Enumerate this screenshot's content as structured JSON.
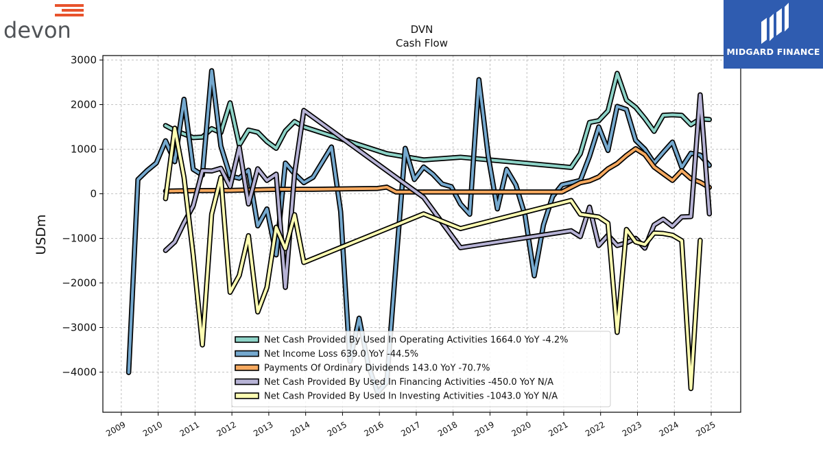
{
  "branding": {
    "left_logo_text": "devon",
    "right_logo_text": "MIDGARD FINANCE"
  },
  "colors": {
    "operating": "#8dd3c7",
    "net_income": "#75a9cf",
    "dividends": "#f6a95f",
    "financing": "#b7b3d6",
    "investing": "#ffffb3",
    "brand_orange": "#e8532c",
    "brand_gray": "#505357",
    "brand_blue": "#2f5cb0"
  },
  "chart_data": {
    "type": "line",
    "title": "DVN",
    "subtitle": "Cash Flow",
    "xlabel": "",
    "ylabel": "USDm",
    "xlim": [
      2008.5,
      2025.8
    ],
    "ylim": [
      -4900,
      3100
    ],
    "x_ticks": [
      "2009",
      "2010",
      "2011",
      "2012",
      "2013",
      "2014",
      "2015",
      "2016",
      "2017",
      "2018",
      "2019",
      "2020",
      "2021",
      "2022",
      "2023",
      "2024",
      "2025"
    ],
    "y_ticks": [
      3000,
      2000,
      1000,
      0,
      -1000,
      -2000,
      -3000,
      -4000
    ],
    "y_tick_labels": [
      "3000",
      "2000",
      "1000",
      "0",
      "−1000",
      "−2000",
      "−3000",
      "−4000"
    ],
    "grid": true,
    "legend_position": "lower-center",
    "series": [
      {
        "key": "operating",
        "legend": "Net Cash Provided By Used In Operating Activities  1664.0 YoY -4.2%",
        "points": [
          [
            2010.2,
            1530
          ],
          [
            2010.45,
            1420
          ],
          [
            2010.7,
            1340
          ],
          [
            2010.95,
            1260
          ],
          [
            2011.2,
            1270
          ],
          [
            2011.45,
            1460
          ],
          [
            2011.7,
            1370
          ],
          [
            2011.95,
            2040
          ],
          [
            2012.2,
            1090
          ],
          [
            2012.45,
            1430
          ],
          [
            2012.7,
            1380
          ],
          [
            2012.95,
            1170
          ],
          [
            2013.2,
            1020
          ],
          [
            2013.45,
            1410
          ],
          [
            2013.7,
            1620
          ],
          [
            2013.95,
            1500
          ],
          [
            2016.2,
            900
          ],
          [
            2017.2,
            760
          ],
          [
            2018.2,
            820
          ],
          [
            2021.2,
            590
          ],
          [
            2021.45,
            900
          ],
          [
            2021.7,
            1600
          ],
          [
            2021.95,
            1640
          ],
          [
            2022.2,
            1860
          ],
          [
            2022.45,
            2700
          ],
          [
            2022.7,
            2100
          ],
          [
            2022.95,
            1940
          ],
          [
            2023.2,
            1690
          ],
          [
            2023.45,
            1400
          ],
          [
            2023.7,
            1760
          ],
          [
            2023.95,
            1770
          ],
          [
            2024.2,
            1760
          ],
          [
            2024.45,
            1550
          ],
          [
            2024.7,
            1680
          ],
          [
            2024.95,
            1664
          ]
        ]
      },
      {
        "key": "net_income",
        "legend": "Net Income Loss  639.0 YoY -44.5%",
        "points": [
          [
            2009.2,
            -4010
          ],
          [
            2009.45,
            320
          ],
          [
            2009.7,
            520
          ],
          [
            2009.95,
            690
          ],
          [
            2010.2,
            1190
          ],
          [
            2010.45,
            720
          ],
          [
            2010.7,
            2120
          ],
          [
            2010.95,
            550
          ],
          [
            2011.2,
            420
          ],
          [
            2011.45,
            2760
          ],
          [
            2011.7,
            1070
          ],
          [
            2011.95,
            400
          ],
          [
            2012.2,
            350
          ],
          [
            2012.45,
            530
          ],
          [
            2012.7,
            -720
          ],
          [
            2012.95,
            -340
          ],
          [
            2013.2,
            -1370
          ],
          [
            2013.45,
            690
          ],
          [
            2013.7,
            450
          ],
          [
            2013.95,
            250
          ],
          [
            2014.2,
            370
          ],
          [
            2014.7,
            1050
          ],
          [
            2014.95,
            -400
          ],
          [
            2015.2,
            -3760
          ],
          [
            2015.45,
            -2790
          ],
          [
            2015.7,
            -3850
          ],
          [
            2015.95,
            -4460
          ],
          [
            2016.2,
            -4230
          ],
          [
            2016.45,
            -1560
          ],
          [
            2016.7,
            1020
          ],
          [
            2016.95,
            320
          ],
          [
            2017.2,
            600
          ],
          [
            2017.45,
            440
          ],
          [
            2017.7,
            220
          ],
          [
            2017.95,
            160
          ],
          [
            2018.2,
            -230
          ],
          [
            2018.45,
            -460
          ],
          [
            2018.7,
            2560
          ],
          [
            2018.95,
            850
          ],
          [
            2019.2,
            -340
          ],
          [
            2019.45,
            550
          ],
          [
            2019.7,
            200
          ],
          [
            2019.95,
            -480
          ],
          [
            2020.2,
            -1840
          ],
          [
            2020.45,
            -700
          ],
          [
            2020.7,
            -60
          ],
          [
            2020.95,
            200
          ],
          [
            2021.2,
            250
          ],
          [
            2021.45,
            300
          ],
          [
            2021.7,
            840
          ],
          [
            2021.95,
            1500
          ],
          [
            2022.2,
            970
          ],
          [
            2022.45,
            1960
          ],
          [
            2022.7,
            1890
          ],
          [
            2022.95,
            1200
          ],
          [
            2023.2,
            1000
          ],
          [
            2023.45,
            690
          ],
          [
            2023.7,
            930
          ],
          [
            2023.95,
            1160
          ],
          [
            2024.2,
            590
          ],
          [
            2024.45,
            910
          ],
          [
            2024.7,
            870
          ],
          [
            2024.95,
            639
          ]
        ]
      },
      {
        "key": "dividends",
        "legend": "Payments Of Ordinary Dividends  143.0 YoY -70.7%",
        "points": [
          [
            2010.2,
            60
          ],
          [
            2010.95,
            70
          ],
          [
            2011.95,
            75
          ],
          [
            2013.2,
            100
          ],
          [
            2014.2,
            100
          ],
          [
            2015.95,
            120
          ],
          [
            2016.2,
            150
          ],
          [
            2016.45,
            40
          ],
          [
            2018.2,
            40
          ],
          [
            2020.95,
            40
          ],
          [
            2021.45,
            250
          ],
          [
            2021.7,
            290
          ],
          [
            2021.95,
            380
          ],
          [
            2022.2,
            560
          ],
          [
            2022.45,
            680
          ],
          [
            2022.7,
            860
          ],
          [
            2022.95,
            1010
          ],
          [
            2023.2,
            880
          ],
          [
            2023.45,
            600
          ],
          [
            2023.7,
            450
          ],
          [
            2023.95,
            300
          ],
          [
            2024.2,
            520
          ],
          [
            2024.45,
            340
          ],
          [
            2024.7,
            260
          ],
          [
            2024.95,
            143
          ]
        ]
      },
      {
        "key": "financing",
        "legend": "Net Cash Provided By Used In Financing Activities  -450.0 YoY N/A",
        "points": [
          [
            2010.2,
            -1270
          ],
          [
            2010.45,
            -1080
          ],
          [
            2010.7,
            -650
          ],
          [
            2010.95,
            -270
          ],
          [
            2011.2,
            520
          ],
          [
            2011.45,
            510
          ],
          [
            2011.7,
            570
          ],
          [
            2011.95,
            160
          ],
          [
            2012.2,
            1040
          ],
          [
            2012.45,
            -230
          ],
          [
            2012.7,
            560
          ],
          [
            2012.95,
            300
          ],
          [
            2013.2,
            440
          ],
          [
            2013.45,
            -2100
          ],
          [
            2013.7,
            450
          ],
          [
            2013.95,
            1870
          ],
          [
            2017.2,
            -80
          ],
          [
            2018.2,
            -1210
          ],
          [
            2021.2,
            -830
          ],
          [
            2021.45,
            -960
          ],
          [
            2021.7,
            -300
          ],
          [
            2021.95,
            -1160
          ],
          [
            2022.2,
            -930
          ],
          [
            2022.45,
            -1160
          ],
          [
            2022.7,
            -1100
          ],
          [
            2022.95,
            -1000
          ],
          [
            2023.2,
            -1220
          ],
          [
            2023.45,
            -700
          ],
          [
            2023.7,
            -570
          ],
          [
            2023.95,
            -730
          ],
          [
            2024.2,
            -520
          ],
          [
            2024.45,
            -510
          ],
          [
            2024.7,
            2220
          ],
          [
            2024.95,
            -450
          ]
        ]
      },
      {
        "key": "investing",
        "legend": "Net Cash Provided By Used In Investing Activities  -1043.0 YoY N/A",
        "points": [
          [
            2010.2,
            -110
          ],
          [
            2010.45,
            1470
          ],
          [
            2010.7,
            370
          ],
          [
            2010.95,
            -1370
          ],
          [
            2011.2,
            -3390
          ],
          [
            2011.45,
            -460
          ],
          [
            2011.7,
            370
          ],
          [
            2011.95,
            -2210
          ],
          [
            2012.2,
            -1830
          ],
          [
            2012.45,
            -940
          ],
          [
            2012.7,
            -2650
          ],
          [
            2012.95,
            -2100
          ],
          [
            2013.2,
            -750
          ],
          [
            2013.45,
            -1230
          ],
          [
            2013.7,
            -470
          ],
          [
            2013.95,
            -1540
          ],
          [
            2017.2,
            -450
          ],
          [
            2018.2,
            -780
          ],
          [
            2021.2,
            -150
          ],
          [
            2021.45,
            -460
          ],
          [
            2021.7,
            -490
          ],
          [
            2021.95,
            -520
          ],
          [
            2022.2,
            -660
          ],
          [
            2022.45,
            -3110
          ],
          [
            2022.7,
            -800
          ],
          [
            2022.95,
            -1080
          ],
          [
            2023.2,
            -1140
          ],
          [
            2023.45,
            -880
          ],
          [
            2023.7,
            -890
          ],
          [
            2023.95,
            -930
          ],
          [
            2024.2,
            -1050
          ],
          [
            2024.45,
            -4370
          ],
          [
            2024.7,
            -1043
          ]
        ]
      }
    ]
  }
}
